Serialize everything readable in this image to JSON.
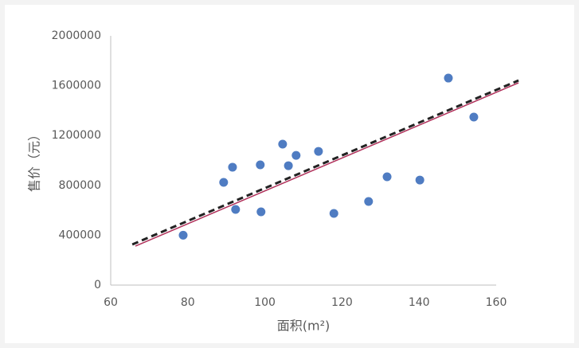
{
  "chart_data": {
    "type": "scatter",
    "x_label": "面积(m²)",
    "y_label": "售价（元）",
    "xlim": [
      60,
      160
    ],
    "xticks": [
      60,
      80,
      100,
      120,
      140,
      160
    ],
    "ylim": [
      0,
      2000000
    ],
    "yticks": [
      0,
      400000,
      800000,
      1200000,
      1600000,
      2000000
    ],
    "grid": false,
    "series": [
      {
        "color": "#4f7cc2",
        "x": [
          78.8,
          89.3,
          91.6,
          92.4,
          98.8,
          99.0,
          104.6,
          106.1,
          108.1,
          113.9,
          117.9,
          126.9,
          131.7,
          140.2,
          147.6,
          154.2
        ],
        "values": [
          400000,
          824000,
          946000,
          607000,
          965000,
          588000,
          1131000,
          958000,
          1041000,
          1073000,
          575000,
          671000,
          869000,
          843000,
          1661000,
          1348000
        ]
      }
    ],
    "lines": [
      {
        "color": "#222222",
        "dashed": true,
        "x": [
          65.6,
          165.8
        ],
        "values": [
          326000,
          1642000
        ]
      },
      {
        "color": "#b0305a",
        "dashed": false,
        "x": [
          66.4,
          165.8
        ],
        "values": [
          313000,
          1623000
        ]
      }
    ]
  }
}
